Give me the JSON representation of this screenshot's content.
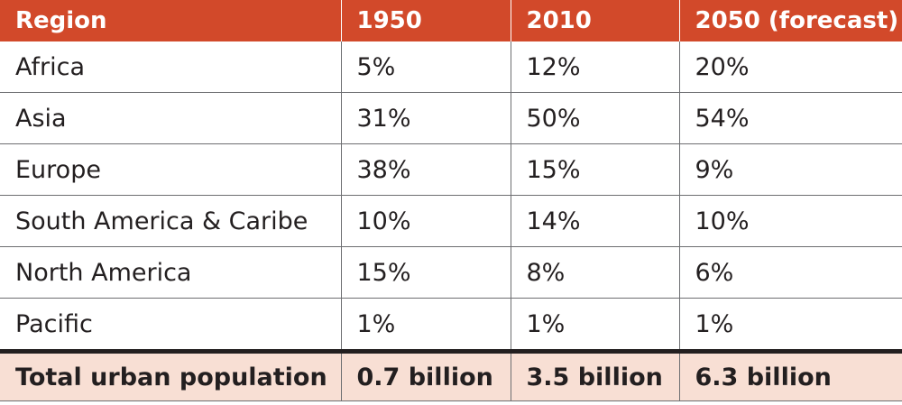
{
  "table": {
    "header": [
      "Region",
      "1950",
      "2010",
      "2050 (forecast)"
    ],
    "rows": [
      [
        "Africa",
        "5%",
        "12%",
        "20%"
      ],
      [
        "Asia",
        "31%",
        "50%",
        "54%"
      ],
      [
        "Europe",
        "38%",
        "15%",
        "9%"
      ],
      [
        "South America & Caribe",
        "10%",
        "14%",
        "10%"
      ],
      [
        "North America",
        "15%",
        "8%",
        "6%"
      ],
      [
        "Pacific",
        "1%",
        "1%",
        "1%"
      ]
    ],
    "total": [
      "Total urban population",
      "0.7 billion",
      "3.5 billion",
      "6.3 billion"
    ]
  },
  "colors": {
    "header_bg": "#d2492a",
    "header_text": "#ffffff",
    "total_bg": "#f8dfd4",
    "text": "#231f20",
    "grid": "#6d6e71"
  }
}
